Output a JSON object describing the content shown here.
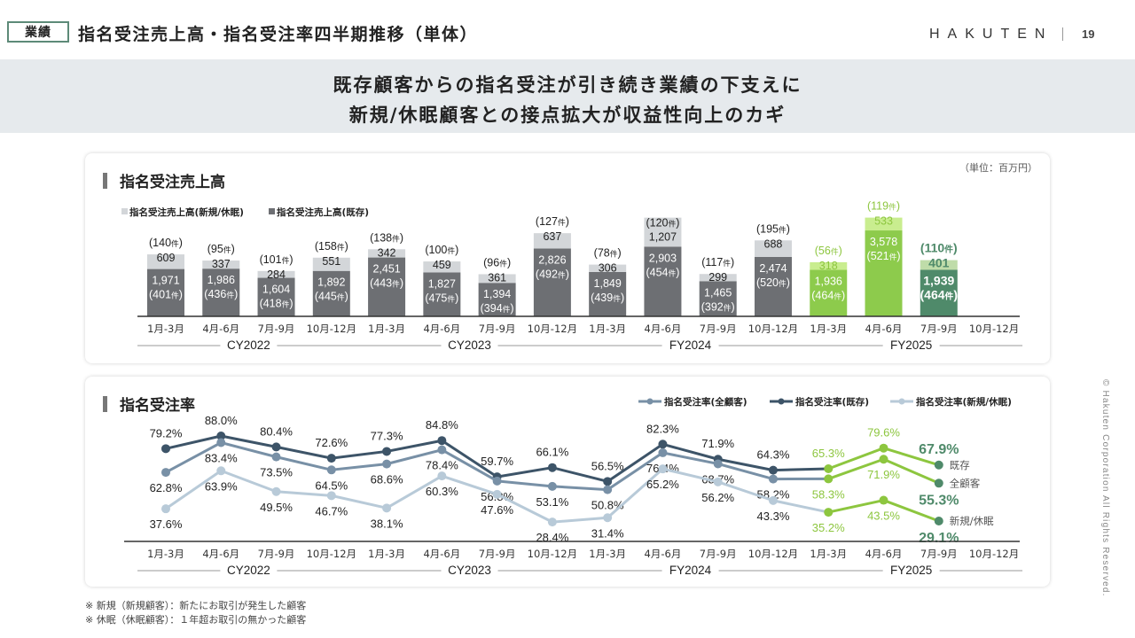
{
  "header": {
    "tag": "業績",
    "title": "指名受注売上高・指名受注率四半期推移（単体）",
    "logo": "HAKUTEN",
    "page_number": "19"
  },
  "banner": {
    "line1": "既存顧客からの指名受注が引き続き業績の下支えに",
    "line2": "新規/休眠顧客との接点拡大が収益性向上のカギ"
  },
  "footnotes": [
    "※ 新規（新規顧客）：新たにお取引が発生した顧客",
    "※ 休眠（休眠顧客）：１年超お取引の無かった顧客"
  ],
  "copyright": "© Hakuten Corporation All Rights Reserved.",
  "colors": {
    "bar_existing": "#6d6f73",
    "bar_new": "#d3d6d9",
    "bar_existing_fy2025": "#8dcb4c",
    "bar_new_fy2025": "#c9ed8f",
    "bar_existing_latest": "#4f8a6a",
    "bar_new_latest": "#bfdca9",
    "line_existing": "#3d5468",
    "line_all": "#7890a6",
    "line_new": "#b8cad8",
    "highlight_green": "#8dc63f",
    "latest_green": "#4f8a6a"
  },
  "chart_data": [
    {
      "type": "bar",
      "stacked": true,
      "title": "指名受注売上高",
      "unit": "（単位：百万円）",
      "count_suffix": "件",
      "categories": [
        "1月-3月",
        "4月-6月",
        "7月-9月",
        "10月-12月",
        "1月-3月",
        "4月-6月",
        "7月-9月",
        "10月-12月",
        "1月-3月",
        "4月-6月",
        "7月-9月",
        "10月-12月",
        "1月-3月",
        "4月-6月",
        "7月-9月",
        "10月-12月"
      ],
      "groups": [
        {
          "label": "CY2022",
          "span": [
            0,
            3
          ]
        },
        {
          "label": "CY2023",
          "span": [
            4,
            7
          ]
        },
        {
          "label": "FY2024",
          "span": [
            8,
            11
          ]
        },
        {
          "label": "FY2025",
          "span": [
            12,
            15
          ]
        }
      ],
      "legend": [
        "指名受注売上高(新規/休眠)",
        "指名受注売上高(既存)"
      ],
      "series": [
        {
          "name": "指名受注売上高(既存)",
          "values": [
            1971,
            1986,
            1604,
            1892,
            2451,
            1827,
            1394,
            2826,
            1849,
            2903,
            1465,
            2474,
            1936,
            3578,
            1939,
            null
          ],
          "counts": [
            401,
            436,
            418,
            445,
            443,
            475,
            394,
            492,
            439,
            454,
            392,
            520,
            464,
            521,
            464,
            null
          ]
        },
        {
          "name": "指名受注売上高(新規/休眠)",
          "values": [
            609,
            337,
            284,
            551,
            342,
            459,
            361,
            637,
            306,
            1207,
            299,
            688,
            318,
            533,
            401,
            null
          ],
          "counts": [
            140,
            95,
            101,
            158,
            138,
            100,
            96,
            127,
            78,
            120,
            117,
            195,
            56,
            119,
            110,
            null
          ]
        }
      ]
    },
    {
      "type": "line",
      "title": "指名受注率",
      "categories": [
        "1月-3月",
        "4月-6月",
        "7月-9月",
        "10月-12月",
        "1月-3月",
        "4月-6月",
        "7月-9月",
        "10月-12月",
        "1月-3月",
        "4月-6月",
        "7月-9月",
        "10月-12月",
        "1月-3月",
        "4月-6月",
        "7月-9月",
        "10月-12月"
      ],
      "groups": [
        {
          "label": "CY2022",
          "span": [
            0,
            3
          ]
        },
        {
          "label": "CY2023",
          "span": [
            4,
            7
          ]
        },
        {
          "label": "FY2024",
          "span": [
            8,
            11
          ]
        },
        {
          "label": "FY2025",
          "span": [
            12,
            15
          ]
        }
      ],
      "legend": [
        "指名受注率(全顧客)",
        "指名受注率(既存)",
        "指名受注率(新規/休眠)"
      ],
      "series": [
        {
          "name": "指名受注率(既存)",
          "end_label": "既存",
          "values": [
            79.2,
            88.0,
            80.4,
            72.6,
            77.3,
            84.8,
            59.7,
            66.1,
            56.5,
            82.3,
            71.9,
            64.3,
            65.3,
            79.6,
            67.9,
            null
          ]
        },
        {
          "name": "指名受注率(全顧客)",
          "end_label": "全顧客",
          "values": [
            62.8,
            83.4,
            73.5,
            64.5,
            68.6,
            78.4,
            56.8,
            53.1,
            50.8,
            76.4,
            68.7,
            58.2,
            58.3,
            71.9,
            55.3,
            null
          ]
        },
        {
          "name": "指名受注率(新規/休眠)",
          "end_label": "新規/休眠",
          "values": [
            37.6,
            63.9,
            49.5,
            46.7,
            38.1,
            60.3,
            47.6,
            28.4,
            31.4,
            65.2,
            56.2,
            43.3,
            35.2,
            43.5,
            29.1,
            null
          ]
        }
      ],
      "value_suffix": "%"
    }
  ]
}
